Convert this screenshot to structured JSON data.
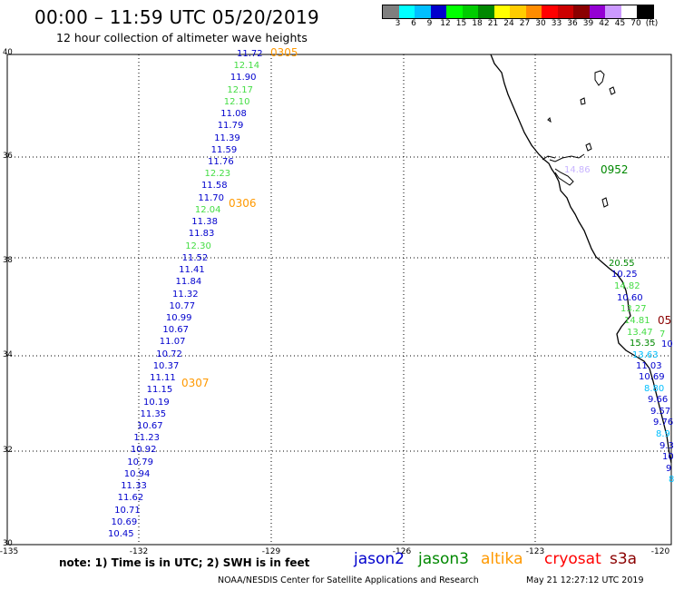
{
  "header": {
    "title": "00:00 – 11:59 UTC 05/20/2019",
    "subtitle": "12 hour collection of altimeter wave heights"
  },
  "legend": {
    "labels": [
      "3",
      "6",
      "9",
      "12",
      "15",
      "18",
      "21",
      "24",
      "27",
      "30",
      "33",
      "36",
      "39",
      "42",
      "45",
      "70",
      "(ft)"
    ],
    "colors": [
      "#7f7f7f",
      "#00ffff",
      "#00bfff",
      "#0000cd",
      "#00ff00",
      "#00cc00",
      "#008800",
      "#ffff00",
      "#ffcc00",
      "#ff8c00",
      "#ff0000",
      "#cc0000",
      "#8b0000",
      "#9400d3",
      "#cc99ff",
      "#ffffff",
      "#000000"
    ]
  },
  "axes": {
    "lat_labels": [
      "40",
      "38",
      "36",
      "34",
      "32",
      "30"
    ],
    "lon_labels": [
      "-135",
      "-132",
      "-129",
      "-126",
      "-123",
      "-120"
    ]
  },
  "track_west": {
    "values": [
      "11.72",
      "12.14",
      "11.90",
      "12.17",
      "12.10",
      "11.08",
      "11.79",
      "11.39",
      "11.59",
      "11.76",
      "12.23",
      "11.58",
      "11.70",
      "12.04",
      "11.38",
      "11.83",
      "12.30",
      "11.52",
      "11.41",
      "11.84",
      "11.32",
      "10.77",
      "10.99",
      "10.67",
      "11.07",
      "10.72",
      "10.37",
      "11.11",
      "11.15",
      "10.19",
      "11.35",
      "10.67",
      "11.23",
      "10.92",
      "10.79",
      "10.94",
      "11.33",
      "11.62",
      "10.71",
      "10.69",
      "10.45"
    ],
    "colors": [
      "#0000cd",
      "#44dd44",
      "#0000cd",
      "#44dd44",
      "#44dd44",
      "#0000cd",
      "#0000cd",
      "#0000cd",
      "#0000cd",
      "#0000cd",
      "#44dd44",
      "#0000cd",
      "#0000cd",
      "#44dd44",
      "#0000cd",
      "#0000cd",
      "#44dd44",
      "#0000cd",
      "#0000cd",
      "#0000cd",
      "#0000cd",
      "#0000cd",
      "#0000cd",
      "#0000cd",
      "#0000cd",
      "#0000cd",
      "#0000cd",
      "#0000cd",
      "#0000cd",
      "#0000cd",
      "#0000cd",
      "#0000cd",
      "#0000cd",
      "#0000cd",
      "#0000cd",
      "#0000cd",
      "#0000cd",
      "#0000cd",
      "#0000cd",
      "#0000cd",
      "#0000cd"
    ]
  },
  "time_labels": {
    "t1": "0305",
    "t2": "0306",
    "t3": "0307",
    "t4": "0952",
    "t5": "05",
    "color_altika": "#ff9900",
    "color_jason3": "#008800",
    "color_cryosat": "#8b0000"
  },
  "coastal_values": {
    "bay": "14.86",
    "bay_color": "#c8b4ff",
    "values": [
      "20.55",
      "10.25",
      "14.82",
      "10.60",
      "13.27",
      "14.81",
      "13.47",
      "15.35",
      "13.63",
      "11.03",
      "10.69",
      "8.80",
      "9.66",
      "9.57",
      "9.76",
      "8.9",
      "9.3",
      "10",
      "9",
      "8"
    ],
    "colors": [
      "#008800",
      "#0000cd",
      "#44dd44",
      "#0000cd",
      "#44dd44",
      "#44dd44",
      "#44dd44",
      "#008800",
      "#00bfff",
      "#0000cd",
      "#0000cd",
      "#00bfff",
      "#0000cd",
      "#0000cd",
      "#0000cd",
      "#00bfff",
      "#0000cd",
      "#0000cd",
      "#0000cd",
      "#00bfff"
    ],
    "extra1": "7",
    "extra2": "10"
  },
  "footer": {
    "note": "note: 1) Time is in UTC; 2) SWH is in feet",
    "sat_jason2": "jason2",
    "sat_jason3": "jason3",
    "sat_altika": "altika",
    "sat_cryosat": "cryosat",
    "sat_s3a": "s3a",
    "color_jason2": "#0000cd",
    "color_jason3": "#008800",
    "color_altika": "#ff9900",
    "color_cryosat": "#ff0000",
    "color_s3a": "#8b0000",
    "credit": "NOAA/NESDIS Center for Satellite Applications and Research",
    "stamp": "May 21 12:27:12 UTC 2019"
  }
}
